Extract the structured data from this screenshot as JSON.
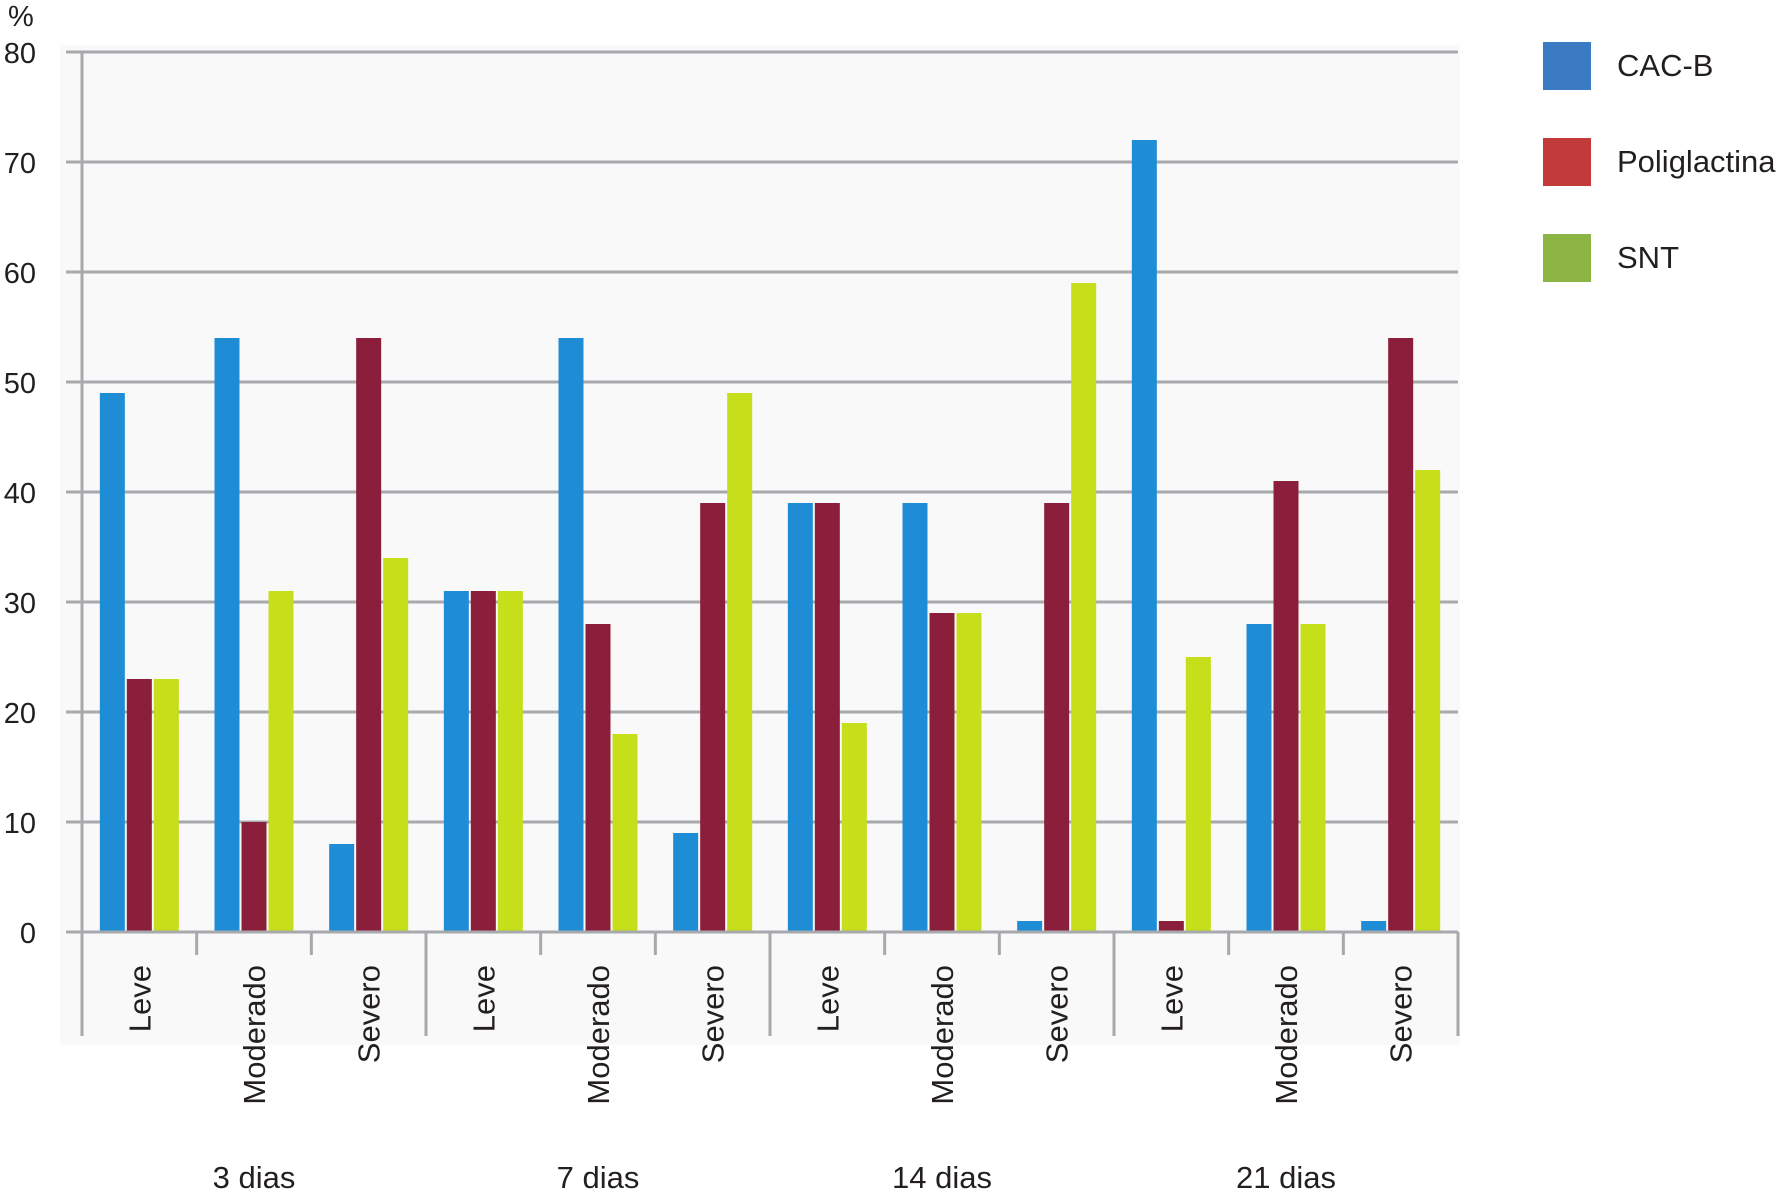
{
  "chart_data": {
    "type": "bar",
    "ylabel": "%",
    "ylim": [
      0,
      80
    ],
    "yticks": [
      "0",
      "10",
      "20",
      "30",
      "40",
      "50",
      "60",
      "70",
      "80"
    ],
    "grid": true,
    "legend_position": "right",
    "categories": [
      "Leve",
      "Moderado",
      "Severo",
      "Leve",
      "Moderado",
      "Severo",
      "Leve",
      "Moderado",
      "Severo",
      "Leve",
      "Moderado",
      "Severo"
    ],
    "groups": [
      "3 dias",
      "7 dias",
      "14 dias",
      "21 dias"
    ],
    "series": [
      {
        "name": "CAC-B",
        "color": "#1f8dd6",
        "values": [
          49,
          54,
          8,
          31,
          54,
          9,
          39,
          39,
          1,
          72,
          28,
          1
        ]
      },
      {
        "name": "Poliglactina",
        "color": "#8b1f3b",
        "values": [
          23,
          10,
          54,
          31,
          28,
          39,
          39,
          29,
          39,
          1,
          41,
          54
        ]
      },
      {
        "name": "SNT",
        "color": "#c7df1a",
        "values": [
          23,
          31,
          34,
          31,
          18,
          49,
          19,
          29,
          59,
          25,
          28,
          42
        ]
      }
    ]
  },
  "legend": {
    "items": [
      {
        "label": "CAC-B",
        "color": "#3a7bc4"
      },
      {
        "label": "Poliglactina",
        "color": "#c23b3a"
      },
      {
        "label": "SNT",
        "color": "#8db543"
      }
    ]
  }
}
